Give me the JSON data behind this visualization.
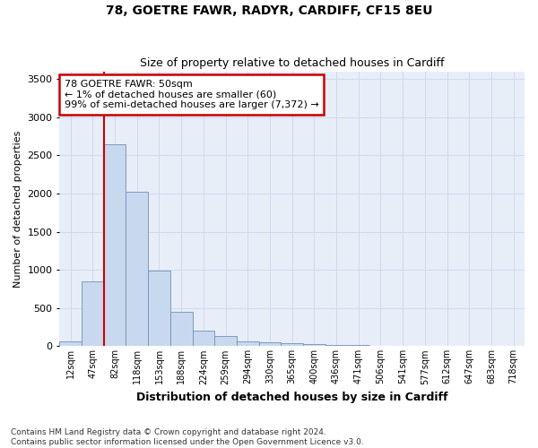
{
  "title1": "78, GOETRE FAWR, RADYR, CARDIFF, CF15 8EU",
  "title2": "Size of property relative to detached houses in Cardiff",
  "xlabel": "Distribution of detached houses by size in Cardiff",
  "ylabel": "Number of detached properties",
  "categories": [
    "12sqm",
    "47sqm",
    "82sqm",
    "118sqm",
    "153sqm",
    "188sqm",
    "224sqm",
    "259sqm",
    "294sqm",
    "330sqm",
    "365sqm",
    "400sqm",
    "436sqm",
    "471sqm",
    "506sqm",
    "541sqm",
    "577sqm",
    "612sqm",
    "647sqm",
    "683sqm",
    "718sqm"
  ],
  "values": [
    60,
    850,
    2650,
    2020,
    990,
    450,
    200,
    130,
    65,
    50,
    35,
    28,
    20,
    15,
    10,
    7,
    5,
    4,
    3,
    2,
    2
  ],
  "bar_color": "#c8d8ee",
  "bar_edge_color": "#7090b8",
  "red_line_x": 1.5,
  "annotation_text": "78 GOETRE FAWR: 50sqm\n← 1% of detached houses are smaller (60)\n99% of semi-detached houses are larger (7,372) →",
  "annotation_box_color": "#ffffff",
  "annotation_box_edge": "#cc0000",
  "ylim": [
    0,
    3600
  ],
  "yticks": [
    0,
    500,
    1000,
    1500,
    2000,
    2500,
    3000,
    3500
  ],
  "grid_color": "#d0d8ee",
  "bg_color": "#e8eef8",
  "fig_bg": "#ffffff",
  "footer": "Contains HM Land Registry data © Crown copyright and database right 2024.\nContains public sector information licensed under the Open Government Licence v3.0."
}
